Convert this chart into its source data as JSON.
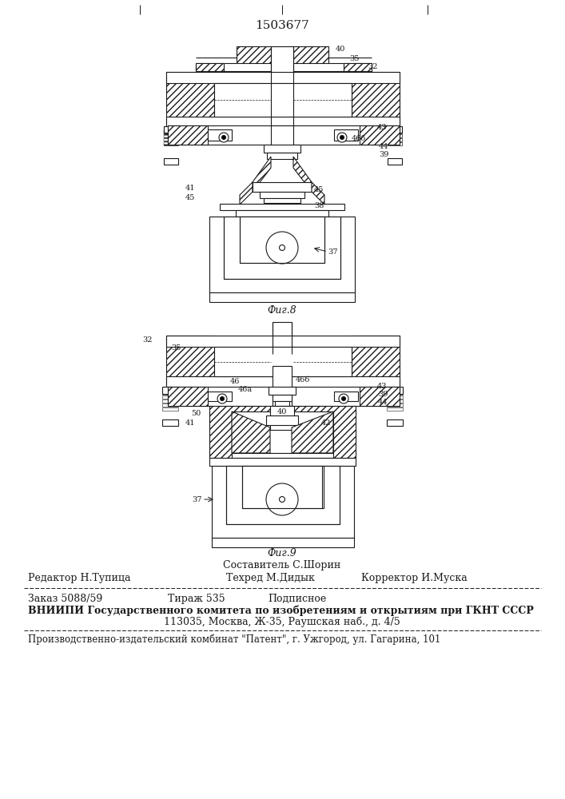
{
  "patent_number": "1503677",
  "fig8_caption": "Фиг.8",
  "fig9_caption": "Фиг.9",
  "composer": "Составитель С.Шорин",
  "editor": "Редактор Н.Тупица",
  "techred": "Техред М.Дидык",
  "corrector": "Корректор И.Муска",
  "order": "Заказ 5088/59",
  "tirazh": "Тираж 535",
  "podpisnoe": "Подписное",
  "vniiipi_line1": "ВНИИПИ Государственного комитета по изобретениям и открытиям при ГКНТ СССР",
  "vniiipi_line2": "113035, Москва, Ж-35, Раушская наб., д. 4/5",
  "publisher": "Производственно-издательский комбинат \"Патент\", г. Ужгород, ул. Гагарина, 101",
  "bg_color": "#ffffff",
  "line_color": "#1a1a1a"
}
